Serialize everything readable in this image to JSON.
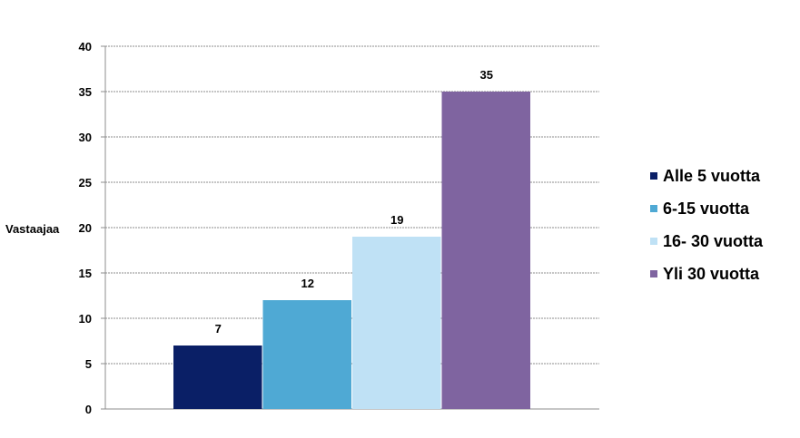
{
  "chart_data": {
    "type": "bar",
    "ylabel": "Vastaajaa",
    "ylim": [
      0,
      40
    ],
    "yticks": [
      0,
      5,
      10,
      15,
      20,
      25,
      30,
      35,
      40
    ],
    "grid": true,
    "legend_position": "right",
    "series": [
      {
        "name": "Alle 5 vuotta",
        "value": 7,
        "color": "#0a1f66"
      },
      {
        "name": "6-15 vuotta",
        "value": 12,
        "color": "#4fa9d4"
      },
      {
        "name": "16- 30 vuotta",
        "value": 19,
        "color": "#bfe1f5"
      },
      {
        "name": "Yli 30 vuotta",
        "value": 35,
        "color": "#7f64a0"
      }
    ]
  }
}
